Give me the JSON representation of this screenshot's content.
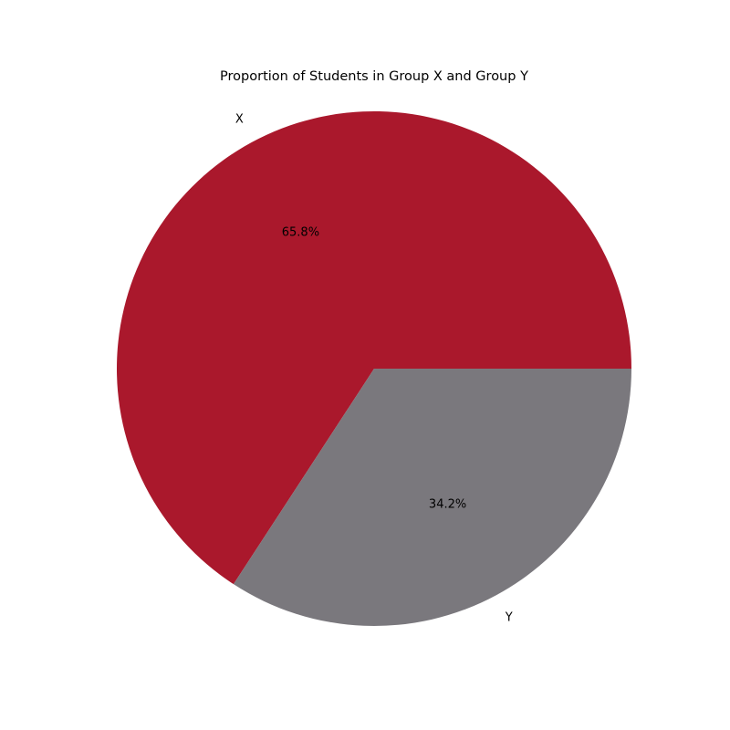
{
  "chart_data": {
    "type": "pie",
    "title": "Proportion of Students in Group X and Group Y",
    "categories": [
      "X",
      "Y"
    ],
    "values": [
      65.8,
      34.2
    ],
    "value_labels": [
      "65.8%",
      "34.2%"
    ],
    "colors": [
      "#aa182c",
      "#7a787d"
    ],
    "start_angle_deg": 0,
    "direction": "counterclockwise",
    "legend": "none"
  }
}
